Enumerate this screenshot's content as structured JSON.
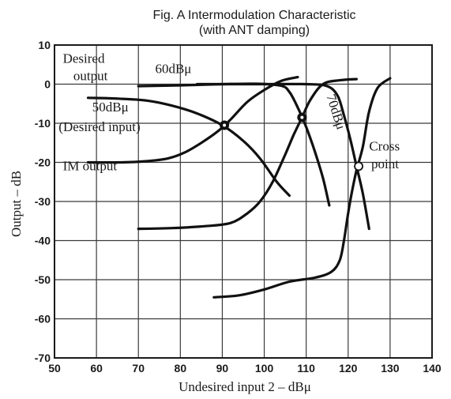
{
  "chart_data": {
    "type": "line",
    "title": "Fig. A  Intermodulation Characteristic",
    "subtitle": "(with ANT damping)",
    "xlabel": "Undesired input 2  –  dBμ",
    "ylabel": "Output  –  dB",
    "xlim": [
      50,
      140
    ],
    "ylim": [
      -70,
      10
    ],
    "xticks": [
      50,
      60,
      70,
      80,
      90,
      100,
      110,
      120,
      130,
      140
    ],
    "yticks": [
      10,
      0,
      -10,
      -20,
      -30,
      -40,
      -50,
      -60,
      -70
    ],
    "xtick_labels": [
      "50",
      "60",
      "70",
      "80",
      "90",
      "100",
      "110",
      "120",
      "130",
      "140"
    ],
    "ytick_labels": [
      "10",
      "0",
      "-10",
      "-20",
      "-30",
      "-40",
      "-50",
      "-60",
      "-70"
    ],
    "grid": true,
    "series": [
      {
        "name": "50dBμ",
        "kind": "desired",
        "points": [
          [
            58,
            -3.5
          ],
          [
            65,
            -3.7
          ],
          [
            72,
            -4.2
          ],
          [
            78,
            -5.5
          ],
          [
            84,
            -7.5
          ],
          [
            90,
            -10.5
          ],
          [
            95,
            -14.5
          ],
          [
            99,
            -19
          ],
          [
            103,
            -25
          ],
          [
            106,
            -28.5
          ]
        ]
      },
      {
        "name": "",
        "kind": "im",
        "points": [
          [
            58,
            -20
          ],
          [
            66,
            -20
          ],
          [
            72,
            -19.7
          ],
          [
            77,
            -19
          ],
          [
            81,
            -17.5
          ],
          [
            85,
            -15
          ],
          [
            89,
            -12
          ],
          [
            92,
            -9
          ],
          [
            96,
            -4.5
          ],
          [
            100,
            -1.5
          ],
          [
            104,
            0.8
          ],
          [
            108,
            1.8
          ]
        ]
      },
      {
        "name": "60dBμ",
        "kind": "desired",
        "points": [
          [
            70,
            -0.5
          ],
          [
            80,
            -0.3
          ],
          [
            90,
            0
          ],
          [
            98,
            0.1
          ],
          [
            104,
            -0.4
          ],
          [
            106,
            -2
          ],
          [
            108,
            -6
          ],
          [
            110,
            -11
          ],
          [
            112,
            -17
          ],
          [
            114,
            -24
          ],
          [
            115.5,
            -31
          ]
        ]
      },
      {
        "name": "",
        "kind": "im",
        "points": [
          [
            70,
            -37
          ],
          [
            78,
            -36.8
          ],
          [
            86,
            -36.3
          ],
          [
            92,
            -35.5
          ],
          [
            96,
            -33
          ],
          [
            99,
            -30
          ],
          [
            102,
            -25
          ],
          [
            105,
            -18
          ],
          [
            107,
            -13
          ],
          [
            109,
            -8.5
          ],
          [
            111,
            -4
          ],
          [
            114,
            0
          ],
          [
            118,
            1
          ],
          [
            122,
            1.3
          ]
        ]
      },
      {
        "name": "70dBμ",
        "kind": "desired",
        "points": [
          [
            84,
            0
          ],
          [
            100,
            0
          ],
          [
            110,
            0
          ],
          [
            115,
            -0.5
          ],
          [
            117.5,
            -3
          ],
          [
            119,
            -8
          ],
          [
            120.5,
            -14
          ],
          [
            122,
            -21
          ],
          [
            123.5,
            -28
          ],
          [
            125,
            -37
          ]
        ]
      },
      {
        "name": "",
        "kind": "im",
        "points": [
          [
            88,
            -54.5
          ],
          [
            94,
            -54
          ],
          [
            100,
            -52.5
          ],
          [
            106,
            -50.5
          ],
          [
            112,
            -49.5
          ],
          [
            116,
            -48
          ],
          [
            118,
            -45
          ],
          [
            119,
            -40
          ],
          [
            120,
            -33
          ],
          [
            121,
            -27
          ],
          [
            122,
            -22
          ],
          [
            123.5,
            -16
          ],
          [
            125,
            -7
          ],
          [
            127,
            -1
          ],
          [
            130,
            1.5
          ]
        ]
      }
    ],
    "markers": [
      {
        "x": 90.5,
        "y": -10.5,
        "shape": "dot"
      },
      {
        "x": 109,
        "y": -8.5,
        "shape": "dot"
      },
      {
        "x": 122.5,
        "y": -21,
        "shape": "circle"
      }
    ],
    "annotations": [
      {
        "text": "Desired",
        "x": 52,
        "y": 5.5
      },
      {
        "text": "output",
        "x": 54.5,
        "y": 1
      },
      {
        "text": "60dBμ",
        "x": 74,
        "y": 2.8
      },
      {
        "text": "50dBμ",
        "x": 59,
        "y": -7
      },
      {
        "text": "(Desired input)",
        "x": 51,
        "y": -12
      },
      {
        "text": "IM output",
        "x": 52,
        "y": -22
      },
      {
        "text": "70dBμ",
        "x": 114.8,
        "y": -3,
        "rotate": 72
      },
      {
        "text": "Cross",
        "x": 125,
        "y": -17
      },
      {
        "text": "point",
        "x": 125.5,
        "y": -21.5
      }
    ]
  }
}
